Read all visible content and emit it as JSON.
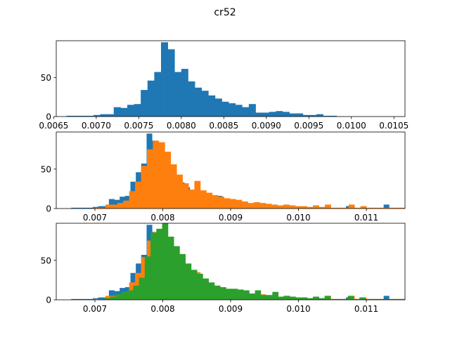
{
  "figure_title": "cr52",
  "colors": {
    "blue": "#1f77b4",
    "orange": "#ff7f0e",
    "green": "#2ca02c"
  },
  "chart_data": [
    {
      "type": "bar",
      "subtype": "histogram",
      "title": "",
      "xlabel": "",
      "ylabel": "",
      "xlim": [
        0.00653,
        0.01063
      ],
      "ylim": [
        0,
        97
      ],
      "xticks": [
        0.0065,
        0.007,
        0.0075,
        0.008,
        0.0085,
        0.009,
        0.0095,
        0.01,
        0.0105
      ],
      "xtick_labels": [
        "0.0065",
        "0.0070",
        "0.0075",
        "0.0080",
        "0.0085",
        "0.0090",
        "0.0095",
        "0.0100",
        "0.0105"
      ],
      "yticks": [
        0,
        50
      ],
      "ytick_labels": [
        "0",
        "50"
      ],
      "series": [
        {
          "color_key": "blue",
          "bin_start": 0.00665,
          "bin_width": 7.94e-05,
          "values": [
            1,
            1,
            1,
            1,
            2,
            3,
            3,
            12,
            11,
            15,
            16,
            34,
            46,
            57,
            95,
            86,
            57,
            61,
            45,
            37,
            33,
            27,
            23,
            19,
            17,
            15,
            12,
            16,
            5,
            5,
            6,
            7,
            6,
            4,
            4,
            2,
            2,
            3,
            1,
            1,
            0,
            0,
            0,
            0,
            0,
            0,
            0,
            0,
            0,
            0,
            0,
            3,
            0,
            0,
            0,
            0,
            0,
            0,
            5
          ]
        }
      ]
    },
    {
      "type": "bar",
      "subtype": "histogram",
      "title": "",
      "xlabel": "",
      "ylabel": "",
      "xlim": [
        0.00643,
        0.01157
      ],
      "ylim": [
        0,
        97
      ],
      "xticks": [
        0.007,
        0.008,
        0.009,
        0.01,
        0.011
      ],
      "xtick_labels": [
        "0.007",
        "0.008",
        "0.009",
        "0.010",
        "0.011"
      ],
      "yticks": [
        0,
        50
      ],
      "ytick_labels": [
        "0",
        "50"
      ],
      "series": [
        {
          "color_key": "blue",
          "bin_start": 0.00665,
          "bin_width": 7.94e-05,
          "values": [
            1,
            1,
            1,
            1,
            2,
            3,
            3,
            12,
            11,
            15,
            16,
            34,
            46,
            57,
            95,
            86,
            57,
            61,
            45,
            37,
            33,
            27,
            23,
            19,
            17,
            15,
            12,
            16,
            5,
            5,
            6,
            7,
            6,
            4,
            4,
            2,
            2,
            3,
            1,
            1,
            0,
            0,
            0,
            0,
            0,
            0,
            0,
            0,
            0,
            0,
            0,
            3,
            0,
            0,
            0,
            0,
            0,
            0,
            5
          ]
        },
        {
          "color_key": "orange",
          "bin_start": 0.00698,
          "bin_width": 8.74e-05,
          "values": [
            1,
            1,
            5,
            5,
            7,
            10,
            22,
            34,
            54,
            75,
            86,
            84,
            72,
            56,
            43,
            32,
            24,
            35,
            23,
            20,
            17,
            15,
            13,
            12,
            11,
            9,
            7,
            8,
            7,
            6,
            5,
            4,
            5,
            4,
            3,
            3,
            2,
            4,
            2,
            5,
            1,
            1,
            1,
            5,
            1,
            3,
            1,
            1,
            1,
            1,
            1,
            1,
            1,
            1,
            1,
            2,
            2,
            1,
            0,
            4
          ]
        }
      ]
    },
    {
      "type": "bar",
      "subtype": "histogram",
      "title": "",
      "xlabel": "",
      "ylabel": "",
      "xlim": [
        0.00643,
        0.01157
      ],
      "ylim": [
        0,
        97
      ],
      "xticks": [
        0.007,
        0.008,
        0.009,
        0.01,
        0.011
      ],
      "xtick_labels": [
        "0.007",
        "0.008",
        "0.009",
        "0.010",
        "0.011"
      ],
      "yticks": [
        0,
        50
      ],
      "ytick_labels": [
        "0",
        "50"
      ],
      "series": [
        {
          "color_key": "blue",
          "bin_start": 0.00665,
          "bin_width": 7.94e-05,
          "values": [
            1,
            1,
            1,
            1,
            2,
            3,
            3,
            12,
            11,
            15,
            16,
            34,
            46,
            57,
            95,
            86,
            57,
            61,
            45,
            37,
            33,
            27,
            23,
            19,
            17,
            15,
            12,
            16,
            5,
            5,
            6,
            7,
            6,
            4,
            4,
            2,
            2,
            3,
            1,
            1,
            0,
            0,
            0,
            0,
            0,
            0,
            0,
            0,
            0,
            0,
            0,
            3,
            0,
            0,
            0,
            0,
            0,
            0,
            5
          ]
        },
        {
          "color_key": "orange",
          "bin_start": 0.00698,
          "bin_width": 8.74e-05,
          "values": [
            1,
            1,
            5,
            5,
            7,
            10,
            22,
            34,
            54,
            75,
            86,
            84,
            72,
            56,
            43,
            32,
            24,
            35,
            23,
            20,
            17,
            15,
            13,
            12,
            11,
            9,
            7,
            8,
            7,
            6,
            5,
            4,
            5,
            4,
            3,
            3,
            2,
            4,
            2,
            5,
            1,
            1,
            1,
            5,
            1,
            3,
            1,
            1,
            1,
            1,
            1,
            1,
            1,
            1,
            1,
            2,
            2,
            1,
            0,
            4
          ]
        },
        {
          "color_key": "green",
          "bin_start": 0.00705,
          "bin_width": 8.55e-05,
          "values": [
            1,
            2,
            4,
            7,
            10,
            12,
            18,
            28,
            55,
            85,
            90,
            97,
            80,
            68,
            58,
            46,
            38,
            33,
            27,
            22,
            18,
            16,
            14,
            14,
            13,
            12,
            8,
            12,
            6,
            6,
            10,
            4,
            5,
            4,
            3,
            3,
            2,
            4,
            2,
            5,
            1,
            1,
            1,
            5,
            1,
            3,
            1,
            1,
            1,
            1,
            1,
            1,
            1,
            1,
            1,
            2,
            2,
            1,
            0,
            4
          ]
        }
      ]
    }
  ]
}
